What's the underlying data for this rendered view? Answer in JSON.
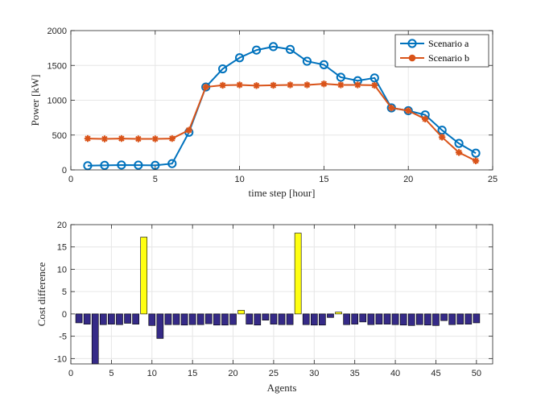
{
  "chart_data": [
    {
      "type": "line",
      "title": "",
      "xlabel": "time step [hour]",
      "ylabel": "Power [kW]",
      "xlim": [
        0,
        25
      ],
      "ylim": [
        0,
        2000
      ],
      "xticks": [
        0,
        5,
        10,
        15,
        20,
        25
      ],
      "yticks": [
        0,
        500,
        1000,
        1500,
        2000
      ],
      "grid": true,
      "legend_position": "top-right",
      "x": [
        1,
        2,
        3,
        4,
        5,
        6,
        7,
        8,
        9,
        10,
        11,
        12,
        13,
        14,
        15,
        16,
        17,
        18,
        19,
        20,
        21,
        22,
        23,
        24
      ],
      "series": [
        {
          "name": "Scenario a",
          "color": "#0072BD",
          "marker": "circle",
          "values": [
            60,
            65,
            70,
            68,
            65,
            90,
            540,
            1190,
            1450,
            1610,
            1720,
            1770,
            1730,
            1560,
            1510,
            1330,
            1280,
            1320,
            890,
            850,
            790,
            570,
            380,
            240
          ]
        },
        {
          "name": "Scenario b",
          "color": "#D95319",
          "marker": "asterisk",
          "values": [
            450,
            445,
            450,
            445,
            445,
            450,
            570,
            1190,
            1215,
            1220,
            1210,
            1215,
            1220,
            1220,
            1235,
            1220,
            1220,
            1215,
            890,
            850,
            730,
            470,
            250,
            130
          ]
        }
      ]
    },
    {
      "type": "bar",
      "title": "",
      "xlabel": "Agents",
      "ylabel": "Cost  difference",
      "xlim": [
        0,
        52
      ],
      "ylim": [
        -11.2,
        20
      ],
      "xticks": [
        0,
        5,
        10,
        15,
        20,
        25,
        30,
        35,
        40,
        45,
        50
      ],
      "yticks": [
        -10,
        -5,
        0,
        5,
        10,
        15,
        20
      ],
      "grid": true,
      "positive_color": "#FFFF11",
      "negative_color": "#352A87",
      "categories": [
        1,
        2,
        3,
        4,
        5,
        6,
        7,
        8,
        9,
        10,
        11,
        12,
        13,
        14,
        15,
        16,
        17,
        18,
        19,
        20,
        21,
        22,
        23,
        24,
        25,
        26,
        27,
        28,
        29,
        30,
        31,
        32,
        33,
        34,
        35,
        36,
        37,
        38,
        39,
        40,
        41,
        42,
        43,
        44,
        45,
        46,
        47,
        48,
        49,
        50
      ],
      "values": [
        -2.0,
        -2.3,
        -11.2,
        -2.4,
        -2.3,
        -2.4,
        -2.1,
        -2.3,
        17.2,
        -2.6,
        -5.5,
        -2.4,
        -2.4,
        -2.5,
        -2.4,
        -2.4,
        -2.2,
        -2.5,
        -2.5,
        -2.4,
        0.8,
        -2.3,
        -2.5,
        -1.4,
        -2.3,
        -2.4,
        -2.4,
        18.1,
        -2.4,
        -2.5,
        -2.5,
        -0.8,
        0.4,
        -2.4,
        -2.3,
        -1.8,
        -2.4,
        -2.3,
        -2.3,
        -2.4,
        -2.5,
        -2.6,
        -2.4,
        -2.5,
        -2.6,
        -1.5,
        -2.4,
        -2.3,
        -2.3,
        -2.0
      ]
    }
  ]
}
